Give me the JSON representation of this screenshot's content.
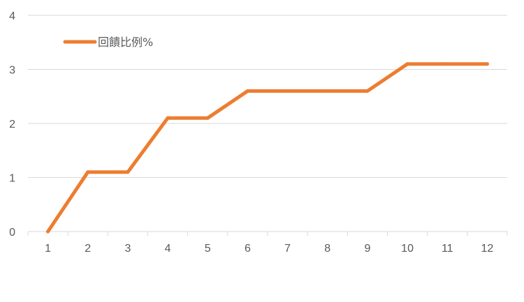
{
  "chart_data": {
    "type": "line",
    "categories": [
      "1",
      "2",
      "3",
      "4",
      "5",
      "6",
      "7",
      "8",
      "9",
      "10",
      "11",
      "12"
    ],
    "series": [
      {
        "name": "回饋比例%",
        "values": [
          0,
          1.1,
          1.1,
          2.1,
          2.1,
          2.6,
          2.6,
          2.6,
          2.6,
          3.1,
          3.1,
          3.1
        ],
        "color": "#ED7D31"
      }
    ],
    "y_ticks": [
      "0",
      "1",
      "2",
      "3",
      "4"
    ],
    "ylim": [
      0,
      4
    ],
    "grid": true,
    "legend_position": "top-left"
  }
}
